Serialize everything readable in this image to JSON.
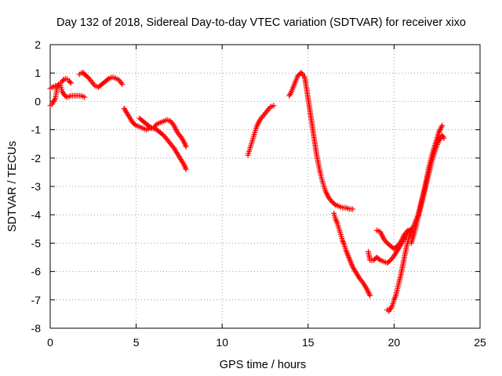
{
  "chart_data": {
    "type": "scatter",
    "title": "Day 132 of 2018, Sidereal Day-to-day VTEC variation (SDTVAR) for receiver xixo",
    "xlabel": "GPS time / hours",
    "ylabel": "SDTVAR / TECUs",
    "xlim": [
      0,
      25
    ],
    "ylim": [
      -8,
      2
    ],
    "xticks": [
      0,
      5,
      10,
      15,
      20,
      25
    ],
    "yticks": [
      -8,
      -7,
      -6,
      -5,
      -4,
      -3,
      -2,
      -1,
      0,
      1,
      2
    ],
    "grid": true,
    "marker": "plus",
    "color": "#ff0000",
    "series": [
      {
        "name": "segment-1",
        "x": [
          0.0,
          0.1,
          0.2,
          0.3,
          0.35,
          0.4,
          0.5,
          0.6,
          0.7,
          0.85,
          1.0,
          1.2,
          1.4,
          1.6,
          1.8,
          2.0
        ],
        "y": [
          -0.15,
          -0.1,
          0.0,
          0.1,
          0.3,
          0.5,
          0.6,
          0.55,
          0.35,
          0.2,
          0.15,
          0.2,
          0.2,
          0.2,
          0.2,
          0.15
        ]
      },
      {
        "name": "segment-2",
        "x": [
          0.0,
          0.1,
          0.2,
          0.3,
          0.4,
          0.5,
          0.6,
          0.7,
          0.8,
          0.9,
          1.0,
          1.1,
          1.2
        ],
        "y": [
          0.45,
          0.5,
          0.52,
          0.55,
          0.55,
          0.6,
          0.65,
          0.7,
          0.78,
          0.8,
          0.78,
          0.72,
          0.65
        ]
      },
      {
        "name": "segment-3",
        "x": [
          1.7,
          1.8,
          1.9,
          2.0,
          2.2,
          2.4,
          2.6,
          2.8,
          3.0,
          3.2,
          3.4,
          3.6,
          3.8,
          4.0,
          4.2
        ],
        "y": [
          0.95,
          1.0,
          1.02,
          0.95,
          0.85,
          0.7,
          0.55,
          0.5,
          0.6,
          0.7,
          0.8,
          0.85,
          0.82,
          0.75,
          0.6
        ]
      },
      {
        "name": "segment-4",
        "x": [
          4.3,
          4.4,
          4.6,
          4.8,
          5.0,
          5.2,
          5.4,
          5.6,
          5.8,
          6.0,
          6.2,
          6.4,
          6.6,
          6.8,
          7.0,
          7.2,
          7.4,
          7.6,
          7.8,
          7.9
        ],
        "y": [
          -0.25,
          -0.35,
          -0.55,
          -0.75,
          -0.85,
          -0.9,
          -0.95,
          -1.0,
          -0.95,
          -0.95,
          -0.8,
          -0.75,
          -0.7,
          -0.65,
          -0.7,
          -0.85,
          -1.1,
          -1.25,
          -1.45,
          -1.6
        ]
      },
      {
        "name": "segment-5",
        "x": [
          5.2,
          5.4,
          5.6,
          5.8,
          6.0,
          6.2,
          6.4,
          6.6,
          6.8,
          7.0,
          7.2,
          7.4,
          7.6,
          7.8,
          7.9
        ],
        "y": [
          -0.6,
          -0.7,
          -0.8,
          -0.9,
          -0.95,
          -1.0,
          -1.1,
          -1.2,
          -1.35,
          -1.5,
          -1.65,
          -1.85,
          -2.05,
          -2.25,
          -2.4
        ]
      },
      {
        "name": "segment-6",
        "x": [
          11.5,
          11.6,
          11.7,
          11.8,
          11.9,
          12.0,
          12.2,
          12.4,
          12.6,
          12.8,
          13.0
        ],
        "y": [
          -1.9,
          -1.7,
          -1.5,
          -1.3,
          -1.1,
          -0.9,
          -0.65,
          -0.5,
          -0.35,
          -0.2,
          -0.15
        ]
      },
      {
        "name": "segment-7",
        "x": [
          13.9,
          14.0,
          14.2,
          14.4,
          14.6,
          14.8,
          14.9,
          15.0,
          15.1,
          15.2,
          15.3,
          15.4,
          15.5,
          15.6,
          15.7,
          15.8,
          15.9,
          16.0,
          16.2,
          16.4,
          16.6,
          16.8,
          17.0,
          17.2,
          17.4,
          17.6
        ],
        "y": [
          0.2,
          0.3,
          0.6,
          0.9,
          1.02,
          0.85,
          0.5,
          0.1,
          -0.3,
          -0.7,
          -1.1,
          -1.5,
          -1.9,
          -2.2,
          -2.5,
          -2.75,
          -2.95,
          -3.15,
          -3.4,
          -3.55,
          -3.65,
          -3.7,
          -3.75,
          -3.75,
          -3.8,
          -3.8
        ]
      },
      {
        "name": "segment-8",
        "x": [
          16.5,
          16.6,
          16.7,
          16.8,
          16.9,
          17.0,
          17.1,
          17.2,
          17.3,
          17.4,
          17.5,
          17.6,
          17.8,
          18.0,
          18.2,
          18.4,
          18.6
        ],
        "y": [
          -3.95,
          -4.15,
          -4.3,
          -4.5,
          -4.7,
          -4.9,
          -5.05,
          -5.25,
          -5.4,
          -5.55,
          -5.7,
          -5.85,
          -6.05,
          -6.25,
          -6.4,
          -6.6,
          -6.85
        ]
      },
      {
        "name": "segment-9",
        "x": [
          18.5,
          18.6,
          18.8,
          19.0,
          19.2,
          19.4,
          19.6,
          19.8,
          20.0,
          20.2,
          20.4,
          20.6,
          20.8,
          21.0,
          21.1
        ],
        "y": [
          -5.3,
          -5.6,
          -5.6,
          -5.5,
          -5.6,
          -5.65,
          -5.7,
          -5.6,
          -5.45,
          -5.25,
          -5.05,
          -4.85,
          -4.6,
          -4.5,
          -4.55
        ]
      },
      {
        "name": "segment-10",
        "x": [
          19.0,
          19.2,
          19.4,
          19.6,
          19.8,
          20.0,
          20.2,
          20.4,
          20.6,
          20.8
        ],
        "y": [
          -4.55,
          -4.6,
          -4.85,
          -5.0,
          -5.1,
          -5.2,
          -5.1,
          -4.95,
          -4.7,
          -4.55
        ]
      },
      {
        "name": "segment-11",
        "x": [
          19.6,
          19.7,
          19.8,
          19.9,
          20.0,
          20.1,
          20.2,
          20.3,
          20.4,
          20.5,
          20.6,
          20.7,
          20.8,
          20.9,
          21.0,
          21.2,
          21.4,
          21.6,
          21.8,
          22.0,
          22.2,
          22.4,
          22.6,
          22.8
        ],
        "y": [
          -7.35,
          -7.4,
          -7.3,
          -7.2,
          -7.0,
          -6.85,
          -6.6,
          -6.35,
          -6.1,
          -5.8,
          -5.5,
          -5.2,
          -4.95,
          -4.75,
          -4.6,
          -4.3,
          -4.0,
          -3.5,
          -3.0,
          -2.4,
          -1.9,
          -1.5,
          -1.1,
          -0.85
        ]
      },
      {
        "name": "segment-12",
        "x": [
          21.0,
          21.2,
          21.4,
          21.6,
          21.8,
          22.0,
          22.2,
          22.4,
          22.6,
          22.8,
          22.9
        ],
        "y": [
          -5.0,
          -4.6,
          -4.1,
          -3.6,
          -3.1,
          -2.6,
          -2.1,
          -1.7,
          -1.4,
          -1.2,
          -1.3
        ]
      }
    ]
  }
}
